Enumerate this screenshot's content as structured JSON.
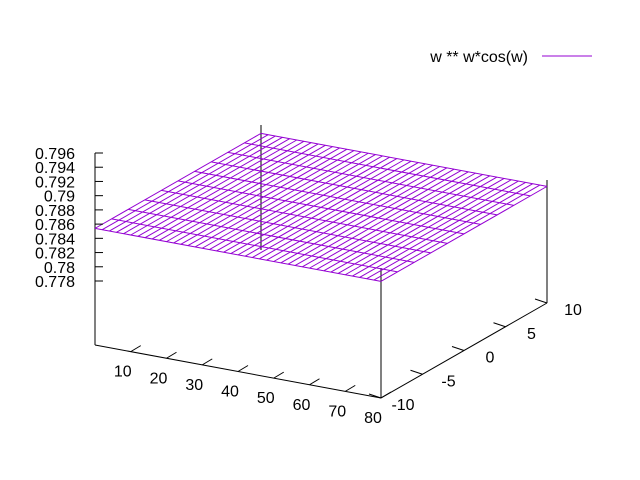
{
  "chart_data": {
    "type": "surface",
    "legend": {
      "label": "w ** w*cos(w)",
      "position": "top-right",
      "color": "#9400d3"
    },
    "xlim": [
      0,
      80
    ],
    "ylim": [
      -10,
      10
    ],
    "zlim": [
      0.778,
      0.796
    ],
    "xticks": [
      "10",
      "20",
      "30",
      "40",
      "50",
      "60",
      "70",
      "80"
    ],
    "yticks": [
      "-10",
      "-5",
      "0",
      "5",
      "10"
    ],
    "zticks": [
      "0.778",
      "0.78",
      "0.782",
      "0.784",
      "0.786",
      "0.788",
      "0.79",
      "0.792",
      "0.794",
      "0.796"
    ],
    "surface_z": 0.7854,
    "grid": false
  }
}
